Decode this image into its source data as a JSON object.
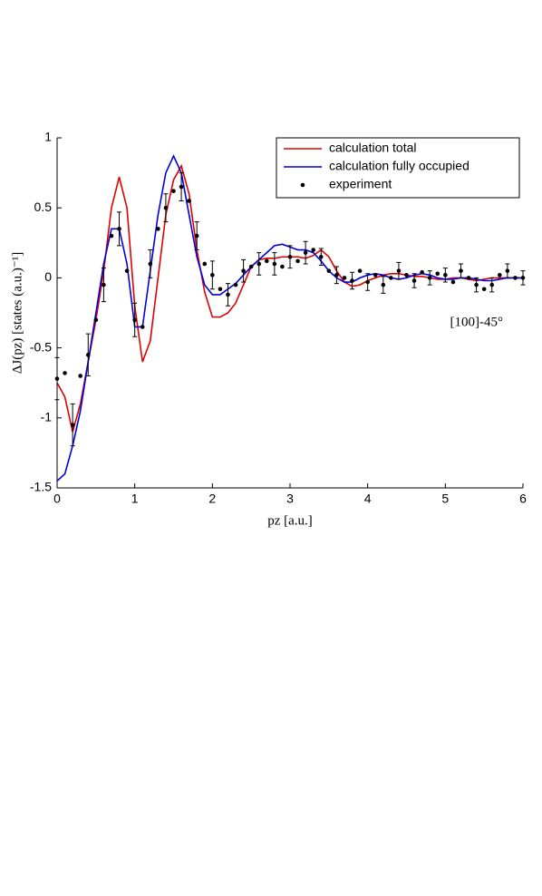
{
  "chart_data": {
    "type": "line",
    "x_label": "pz [a.u.]",
    "y_label": "ΔJ(pz) [states (a.u.)⁻¹]",
    "annotation": "[100]-45°",
    "xlim": [
      0,
      6
    ],
    "xticks": [
      0,
      1,
      2,
      3,
      4,
      5,
      6
    ],
    "ylim": [
      -1.5,
      1
    ],
    "yticks": [
      -1.5,
      -1,
      -0.5,
      0,
      0.5,
      1
    ],
    "legend": "upper right",
    "x": [
      0,
      0.1,
      0.2,
      0.3,
      0.4,
      0.5,
      0.6,
      0.7,
      0.8,
      0.9,
      1,
      1.1,
      1.2,
      1.3,
      1.4,
      1.5,
      1.6,
      1.7,
      1.8,
      1.9,
      2,
      2.1,
      2.2,
      2.3,
      2.4,
      2.5,
      2.6,
      2.7,
      2.8,
      2.9,
      3,
      3.1,
      3.2,
      3.3,
      3.4,
      3.5,
      3.6,
      3.7,
      3.8,
      3.9,
      4,
      4.1,
      4.2,
      4.3,
      4.4,
      4.5,
      4.6,
      4.7,
      4.8,
      4.9,
      5,
      5.1,
      5.2,
      5.3,
      5.4,
      5.5,
      5.6,
      5.7,
      5.8,
      5.9,
      6
    ],
    "series": [
      {
        "name": "calculation total",
        "color": "#e00000",
        "style": "line",
        "values": [
          -0.75,
          -0.85,
          -1.1,
          -0.9,
          -0.6,
          -0.3,
          0.05,
          0.5,
          0.72,
          0.5,
          -0.2,
          -0.6,
          -0.45,
          0,
          0.45,
          0.7,
          0.8,
          0.6,
          0.2,
          -0.1,
          -0.28,
          -0.28,
          -0.25,
          -0.18,
          -0.05,
          0.08,
          0.13,
          0.14,
          0.14,
          0.15,
          0.15,
          0.15,
          0.14,
          0.16,
          0.2,
          0.15,
          0.05,
          -0.03,
          -0.06,
          -0.05,
          -0.02,
          0,
          0.02,
          0.03,
          0.03,
          0.02,
          0.01,
          0.01,
          0,
          -0.01,
          -0.01,
          0,
          0,
          -0.01,
          -0.02,
          -0.01,
          0,
          0,
          0,
          0,
          0
        ]
      },
      {
        "name": "calculation fully occupied",
        "color": "#0000e0",
        "style": "line",
        "values": [
          -1.45,
          -1.4,
          -1.2,
          -0.95,
          -0.6,
          -0.25,
          0.1,
          0.35,
          0.35,
          0.1,
          -0.35,
          -0.35,
          0.05,
          0.45,
          0.75,
          0.87,
          0.75,
          0.45,
          0.15,
          -0.05,
          -0.12,
          -0.12,
          -0.08,
          -0.04,
          0.02,
          0.08,
          0.13,
          0.18,
          0.23,
          0.24,
          0.22,
          0.2,
          0.2,
          0.18,
          0.12,
          0.05,
          0,
          -0.03,
          -0.03,
          0,
          0.02,
          0.03,
          0.02,
          0,
          -0.01,
          0,
          0.02,
          0.03,
          0.02,
          0,
          -0.01,
          -0.01,
          0,
          0,
          -0.01,
          -0.02,
          -0.02,
          -0.01,
          0,
          0,
          0
        ]
      },
      {
        "name": "experiment",
        "color": "#000000",
        "style": "points",
        "values": [
          -0.72,
          -0.68,
          -1.05,
          -0.7,
          -0.55,
          -0.3,
          -0.05,
          0.3,
          0.35,
          0.05,
          -0.3,
          -0.35,
          0.1,
          0.35,
          0.5,
          0.62,
          0.65,
          0.55,
          0.3,
          0.1,
          0.02,
          -0.08,
          -0.12,
          -0.05,
          0.05,
          0.08,
          0.1,
          0.12,
          0.1,
          0.08,
          0.15,
          0.12,
          0.18,
          0.2,
          0.15,
          0.05,
          0.02,
          0,
          -0.02,
          0.05,
          -0.03,
          0.02,
          -0.05,
          0,
          0.05,
          0.02,
          -0.02,
          0.04,
          0,
          0.03,
          0.02,
          -0.03,
          0.05,
          0,
          -0.05,
          -0.08,
          -0.05,
          0.02,
          0.05,
          0,
          0
        ],
        "errors": [
          0.15,
          null,
          0.15,
          null,
          0.15,
          null,
          0.12,
          null,
          0.12,
          null,
          0.12,
          null,
          0.1,
          null,
          0.1,
          null,
          0.1,
          null,
          0.1,
          null,
          0.1,
          null,
          0.08,
          null,
          0.08,
          null,
          0.08,
          null,
          0.08,
          null,
          0.08,
          null,
          0.08,
          null,
          0.06,
          null,
          0.06,
          null,
          0.06,
          null,
          0.06,
          null,
          0.06,
          null,
          0.06,
          null,
          0.05,
          null,
          0.05,
          null,
          0.05,
          null,
          0.05,
          null,
          0.05,
          null,
          0.05,
          null,
          0.05,
          null,
          0.05
        ]
      }
    ]
  }
}
